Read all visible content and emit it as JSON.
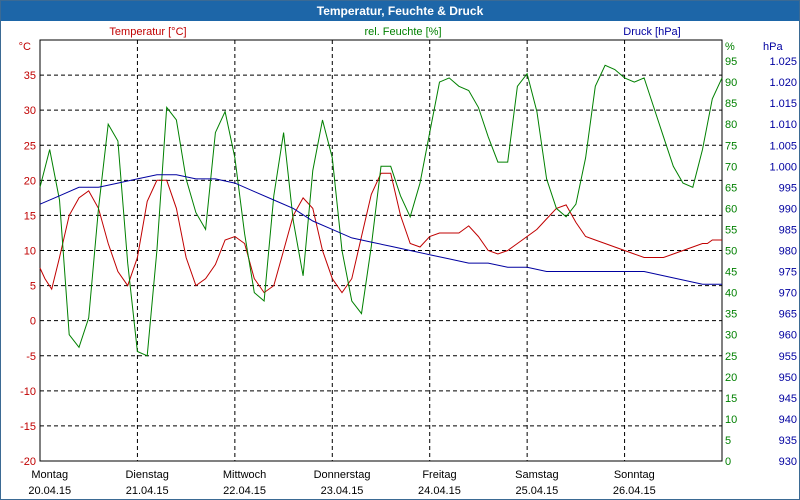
{
  "window": {
    "title": "Temperatur, Feuchte & Druck"
  },
  "colors": {
    "temperature": "#c00000",
    "humidity": "#008000",
    "pressure": "#0000a0",
    "grid": "#000000",
    "title_bg": "#1d66a8"
  },
  "chart_data": {
    "type": "line",
    "title": "Temperatur, Feuchte & Druck",
    "axes": {
      "left": {
        "label": "Temperatur [°C]",
        "unit": "°C",
        "range": [
          -20,
          40
        ],
        "ticks": [
          "35",
          "30",
          "25",
          "20",
          "15",
          "10",
          "5",
          "0",
          "-5",
          "-10",
          "-15",
          "-20"
        ],
        "tick_values": [
          35,
          30,
          25,
          20,
          15,
          10,
          5,
          0,
          -5,
          -10,
          -15,
          -20
        ]
      },
      "right1": {
        "label": "rel. Feuchte [%]",
        "unit": "%",
        "range": [
          0,
          100
        ],
        "ticks": [
          "95",
          "90",
          "85",
          "80",
          "75",
          "70",
          "65",
          "60",
          "55",
          "50",
          "45",
          "40",
          "35",
          "30",
          "25",
          "20",
          "15",
          "10",
          "5",
          "0"
        ],
        "tick_values": [
          95,
          90,
          85,
          80,
          75,
          70,
          65,
          60,
          55,
          50,
          45,
          40,
          35,
          30,
          25,
          20,
          15,
          10,
          5,
          0
        ]
      },
      "right2": {
        "label": "Druck [hPa]",
        "unit": "hPa",
        "range": [
          930,
          1030
        ],
        "ticks": [
          "1.025",
          "1.020",
          "1.015",
          "1.010",
          "1.005",
          "1.000",
          "995",
          "990",
          "985",
          "980",
          "975",
          "970",
          "965",
          "960",
          "955",
          "950",
          "945",
          "940",
          "935",
          "930"
        ],
        "tick_values": [
          1025,
          1020,
          1015,
          1010,
          1005,
          1000,
          995,
          990,
          985,
          980,
          975,
          970,
          965,
          960,
          955,
          950,
          945,
          940,
          935,
          930
        ]
      }
    },
    "x_range": [
      0,
      7
    ],
    "x_categories": [
      {
        "day": "Montag",
        "date": "20.04.15"
      },
      {
        "day": "Dienstag",
        "date": "21.04.15"
      },
      {
        "day": "Mittwoch",
        "date": "22.04.15"
      },
      {
        "day": "Donnerstag",
        "date": "23.04.15"
      },
      {
        "day": "Freitag",
        "date": "24.04.15"
      },
      {
        "day": "Samstag",
        "date": "25.04.15"
      },
      {
        "day": "Sonntag",
        "date": "26.04.15"
      }
    ],
    "series": [
      {
        "name": "Temperatur",
        "axis": "left",
        "x": [
          0,
          0.05,
          0.12,
          0.2,
          0.3,
          0.4,
          0.5,
          0.6,
          0.7,
          0.8,
          0.9,
          1.0,
          1.1,
          1.2,
          1.3,
          1.4,
          1.5,
          1.6,
          1.7,
          1.8,
          1.9,
          2.0,
          2.1,
          2.2,
          2.3,
          2.4,
          2.5,
          2.6,
          2.7,
          2.8,
          2.9,
          3.0,
          3.1,
          3.2,
          3.3,
          3.4,
          3.5,
          3.6,
          3.7,
          3.8,
          3.9,
          4.0,
          4.1,
          4.2,
          4.3,
          4.4,
          4.5,
          4.6,
          4.7,
          4.8,
          4.9,
          5.0,
          5.1,
          5.2,
          5.3,
          5.4,
          5.5,
          5.6,
          5.7,
          5.8,
          5.9,
          6.0,
          6.1,
          6.2,
          6.3,
          6.4,
          6.5,
          6.6,
          6.7,
          6.8,
          6.85,
          6.9,
          7.0
        ],
        "values": [
          7.5,
          6,
          4.5,
          9,
          15,
          17.5,
          18.5,
          16,
          11,
          7,
          5,
          9,
          17,
          20,
          20,
          16,
          9,
          5,
          6,
          8,
          11.5,
          12,
          11,
          6,
          4,
          5,
          10,
          15,
          17.5,
          16,
          10,
          6,
          4,
          6,
          12,
          18,
          21,
          21,
          15,
          11,
          10.5,
          12,
          12.5,
          12.5,
          12.5,
          13.5,
          12,
          10,
          9.5,
          10,
          11,
          12,
          13,
          14.5,
          16,
          16.5,
          14,
          12,
          11.5,
          11,
          10.5,
          10,
          9.5,
          9,
          9,
          9,
          9.5,
          10,
          10.5,
          11,
          11,
          11.5,
          11.5
        ]
      },
      {
        "name": "rel. Feuchte",
        "axis": "right1",
        "x": [
          0,
          0.1,
          0.2,
          0.3,
          0.4,
          0.5,
          0.6,
          0.7,
          0.8,
          0.9,
          1.0,
          1.1,
          1.2,
          1.3,
          1.4,
          1.5,
          1.6,
          1.7,
          1.8,
          1.9,
          2.0,
          2.1,
          2.2,
          2.3,
          2.4,
          2.5,
          2.6,
          2.7,
          2.8,
          2.9,
          3.0,
          3.1,
          3.2,
          3.3,
          3.4,
          3.5,
          3.6,
          3.7,
          3.8,
          3.9,
          4.0,
          4.1,
          4.2,
          4.3,
          4.4,
          4.5,
          4.6,
          4.7,
          4.8,
          4.9,
          5.0,
          5.1,
          5.2,
          5.3,
          5.4,
          5.5,
          5.6,
          5.7,
          5.8,
          5.9,
          6.0,
          6.1,
          6.2,
          6.3,
          6.4,
          6.5,
          6.6,
          6.7,
          6.8,
          6.9,
          7.0
        ],
        "values": [
          65,
          74,
          62,
          30,
          27,
          34,
          60,
          80,
          76,
          47,
          26,
          25,
          50,
          84,
          81,
          67,
          59,
          55,
          78,
          83,
          72,
          54,
          40,
          38,
          63,
          78,
          57,
          44,
          69,
          81,
          72,
          50,
          38,
          35,
          51,
          70,
          70,
          63,
          58,
          66,
          78,
          90,
          91,
          89,
          88,
          84,
          77,
          71,
          71,
          89,
          92,
          83,
          67,
          60,
          58,
          61,
          72,
          89,
          94,
          93,
          91,
          90,
          91,
          84,
          77,
          70,
          66,
          65,
          74,
          86,
          91
        ]
      },
      {
        "name": "Druck",
        "axis": "right2",
        "x": [
          0,
          0.2,
          0.4,
          0.6,
          0.8,
          1.0,
          1.2,
          1.4,
          1.6,
          1.8,
          2.0,
          2.2,
          2.4,
          2.6,
          2.8,
          3.0,
          3.2,
          3.4,
          3.6,
          3.8,
          4.0,
          4.2,
          4.4,
          4.6,
          4.8,
          5.0,
          5.2,
          5.4,
          5.6,
          5.8,
          6.0,
          6.2,
          6.4,
          6.6,
          6.8,
          7.0
        ],
        "values": [
          991,
          993,
          995,
          995,
          996,
          997,
          998,
          998,
          997,
          997,
          996,
          994,
          992,
          990,
          987,
          985,
          983,
          982,
          981,
          980,
          979,
          978,
          977,
          977,
          976,
          976,
          975,
          975,
          975,
          975,
          975,
          975,
          974,
          973,
          972,
          972
        ]
      }
    ]
  }
}
